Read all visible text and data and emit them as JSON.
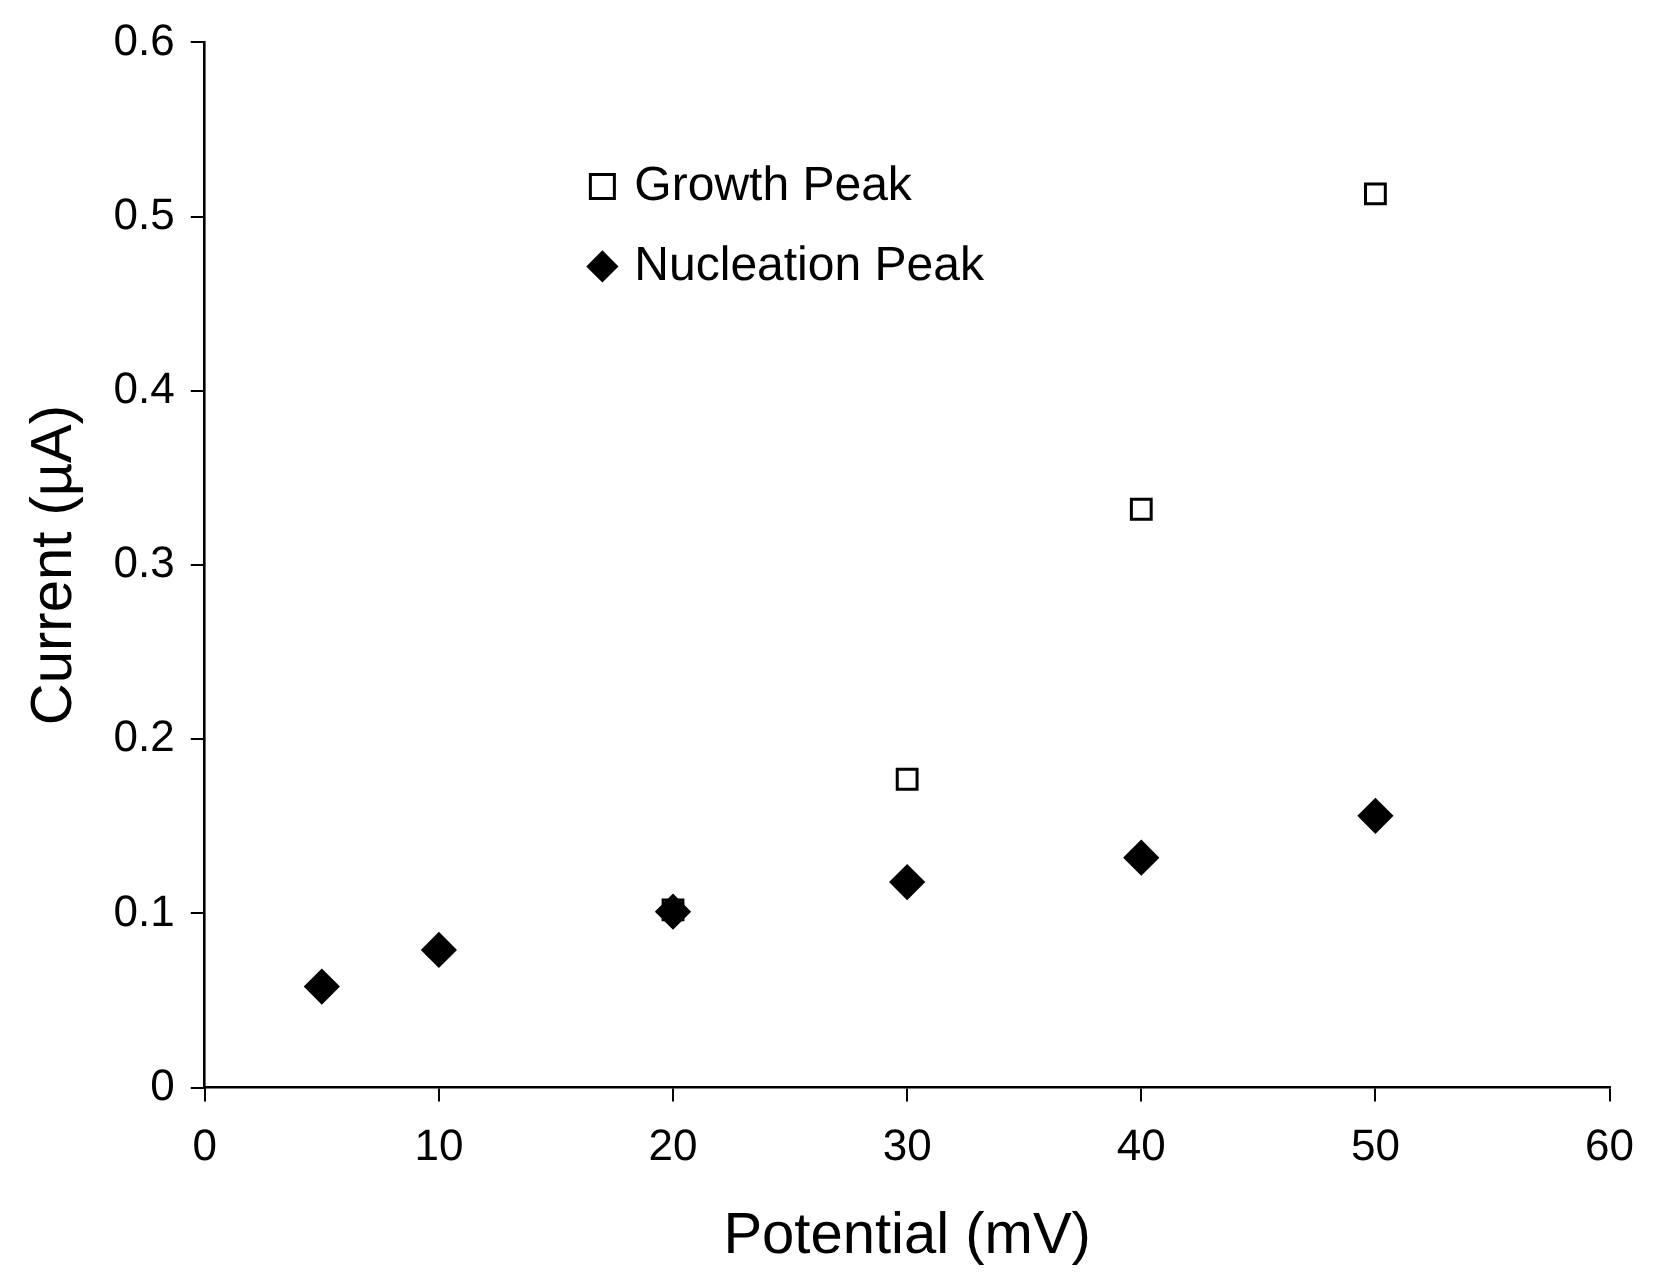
{
  "chart_data": {
    "type": "scatter",
    "xlabel": "Potential (mV)",
    "ylabel": "Current (µA)",
    "xlim": [
      0,
      60
    ],
    "xticks": [
      0,
      10,
      20,
      30,
      40,
      50,
      60
    ],
    "ylim": [
      0,
      0.6
    ],
    "yticks": [
      0,
      0.1,
      0.2,
      0.3,
      0.4,
      0.5,
      0.6
    ],
    "grid": false,
    "legend": "top",
    "series": [
      {
        "name": "Growth Peak",
        "color": "#000000",
        "marker": "square",
        "x": [
          20,
          30,
          40,
          50
        ],
        "values": [
          0.102,
          0.177,
          0.332,
          0.513
        ]
      },
      {
        "name": "Nucleation Peak",
        "color": "#000000",
        "marker": "diamond",
        "x": [
          5,
          10,
          20,
          30,
          40,
          50
        ],
        "values": [
          0.058,
          0.079,
          0.101,
          0.118,
          0.132,
          0.156
        ]
      }
    ]
  }
}
